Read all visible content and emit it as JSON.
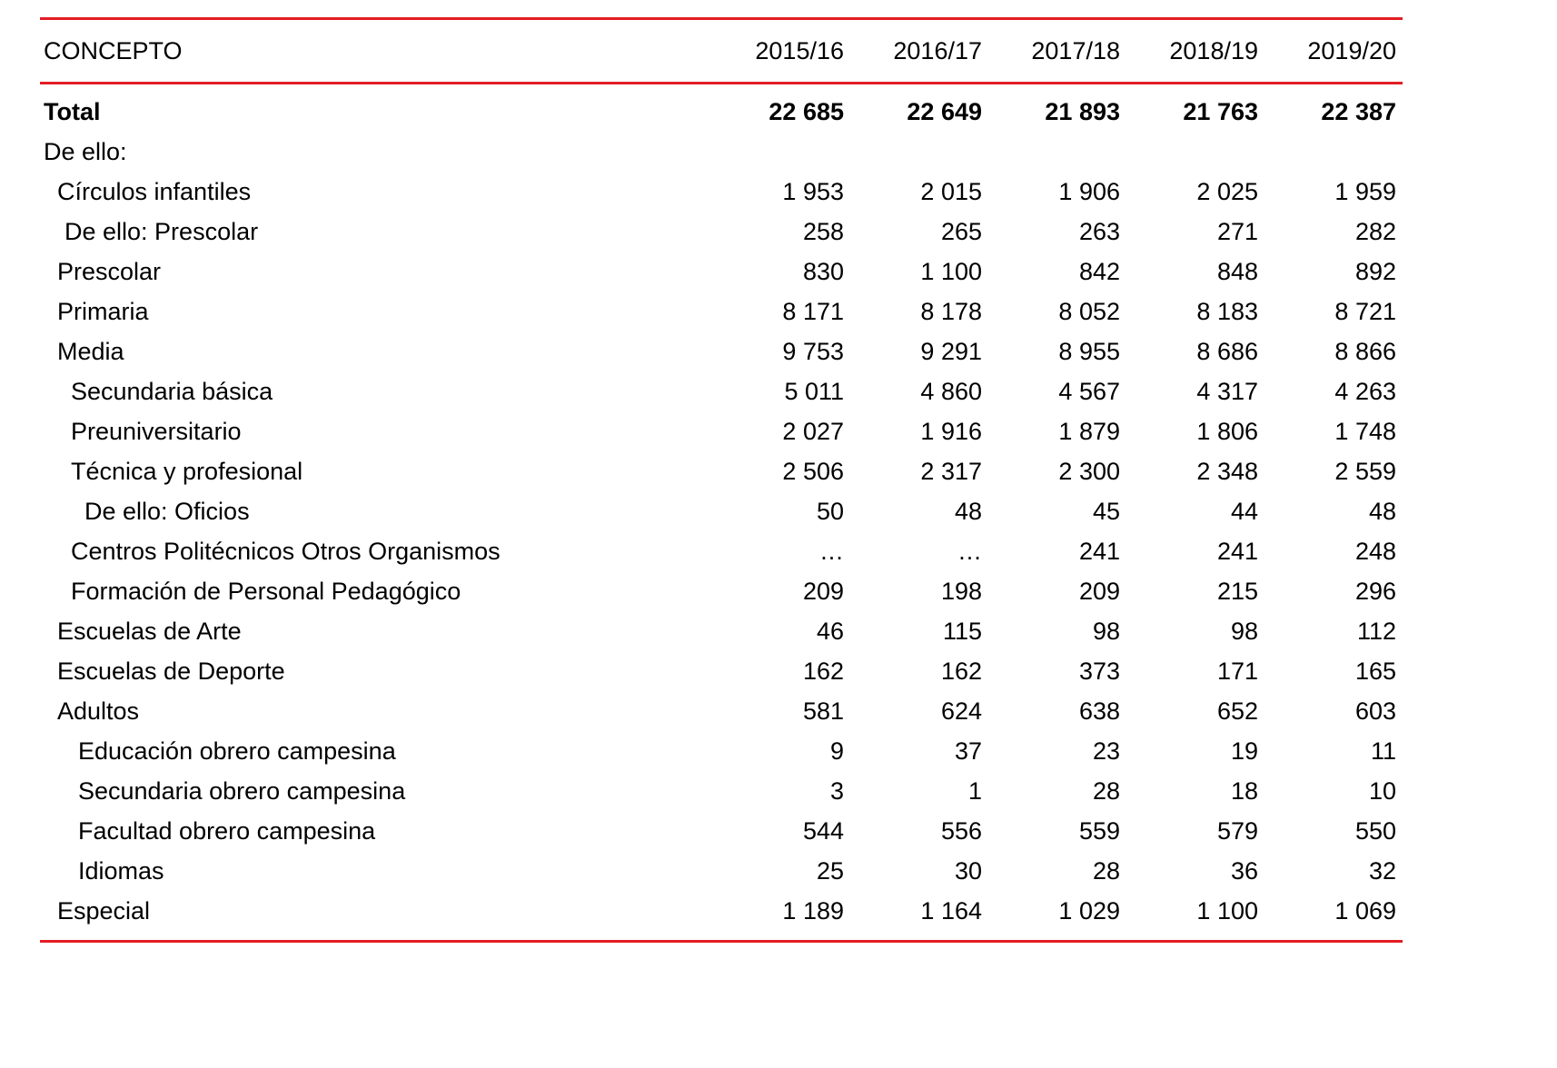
{
  "colors": {
    "rule": "#e31e24",
    "text": "#000000"
  },
  "header": {
    "concept": "CONCEPTO",
    "years": [
      "2015/16",
      "2016/17",
      "2017/18",
      "2018/19",
      "2019/20"
    ]
  },
  "rows": [
    {
      "label": "Total",
      "values": [
        "22 685",
        "22 649",
        "21 893",
        "21 763",
        "22 387"
      ]
    },
    {
      "label": "De ello:",
      "values": [
        "",
        "",
        "",
        "",
        ""
      ]
    },
    {
      "label": "Círculos infantiles",
      "values": [
        "1 953",
        "2 015",
        "1 906",
        "2 025",
        "1 959"
      ]
    },
    {
      "label": "De ello: Prescolar",
      "values": [
        "258",
        "265",
        "263",
        "271",
        "282"
      ]
    },
    {
      "label": "Prescolar",
      "values": [
        "830",
        "1 100",
        "842",
        "848",
        "892"
      ]
    },
    {
      "label": "Primaria",
      "values": [
        "8 171",
        "8 178",
        "8 052",
        "8 183",
        "8 721"
      ]
    },
    {
      "label": "Media",
      "values": [
        "9 753",
        "9 291",
        "8 955",
        "8 686",
        "8 866"
      ]
    },
    {
      "label": "Secundaria básica",
      "values": [
        "5 011",
        "4 860",
        "4 567",
        "4 317",
        "4 263"
      ]
    },
    {
      "label": "Preuniversitario",
      "values": [
        "2 027",
        "1 916",
        "1 879",
        "1 806",
        "1 748"
      ]
    },
    {
      "label": "Técnica y profesional",
      "values": [
        "2 506",
        "2 317",
        "2 300",
        "2 348",
        "2 559"
      ]
    },
    {
      "label": "De ello: Oficios",
      "values": [
        "50",
        "48",
        "45",
        "44",
        "48"
      ]
    },
    {
      "label": "Centros Politécnicos Otros Organismos",
      "values": [
        "…",
        "…",
        "241",
        "241",
        "248"
      ]
    },
    {
      "label": "Formación de Personal Pedagógico",
      "values": [
        "209",
        "198",
        "209",
        "215",
        "296"
      ]
    },
    {
      "label": "Escuelas de Arte",
      "values": [
        "46",
        "115",
        "98",
        "98",
        "112"
      ]
    },
    {
      "label": "Escuelas de Deporte",
      "values": [
        "162",
        "162",
        "373",
        "171",
        "165"
      ]
    },
    {
      "label": "Adultos",
      "values": [
        "581",
        "624",
        "638",
        "652",
        "603"
      ]
    },
    {
      "label": "Educación obrero campesina",
      "values": [
        "9",
        "37",
        "23",
        "19",
        "11"
      ]
    },
    {
      "label": "Secundaria obrero campesina",
      "values": [
        "3",
        "1",
        "28",
        "18",
        "10"
      ]
    },
    {
      "label": "Facultad obrero campesina",
      "values": [
        "544",
        "556",
        "559",
        "579",
        "550"
      ]
    },
    {
      "label": "Idiomas",
      "values": [
        "25",
        "30",
        "28",
        "36",
        "32"
      ]
    },
    {
      "label": "Especial",
      "values": [
        "1 189",
        "1 164",
        "1 029",
        "1 100",
        "1 069"
      ]
    }
  ]
}
